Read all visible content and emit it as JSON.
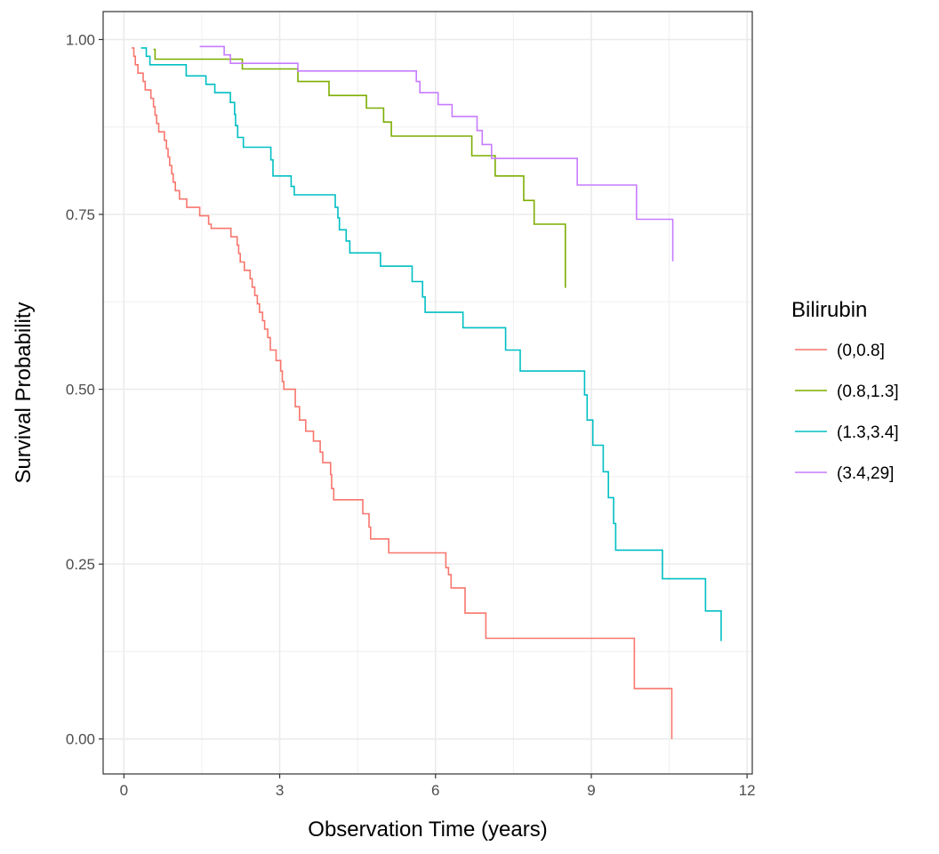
{
  "chart_data": {
    "type": "line",
    "subtype": "step",
    "xlabel": "Observation Time (years)",
    "ylabel": "Survival Probability",
    "xlim": [
      -0.4,
      12.1
    ],
    "ylim": [
      -0.05,
      1.04
    ],
    "x_ticks": [
      0,
      3,
      6,
      9,
      12
    ],
    "x_tick_labels": [
      "0",
      "3",
      "6",
      "9",
      "12"
    ],
    "y_ticks": [
      0,
      0.25,
      0.5,
      0.75,
      1.0
    ],
    "y_tick_labels": [
      "0.00",
      "0.25",
      "0.50",
      "0.75",
      "1.00"
    ],
    "grid": true,
    "legend": {
      "title": "Bilirubin",
      "position": "right"
    },
    "series": [
      {
        "name": "(0,0.8]",
        "color": "#F8766D",
        "points": [
          [
            0.15,
            0.988
          ],
          [
            0.19,
            0.976
          ],
          [
            0.22,
            0.964
          ],
          [
            0.27,
            0.952
          ],
          [
            0.37,
            0.94
          ],
          [
            0.41,
            0.928
          ],
          [
            0.52,
            0.916
          ],
          [
            0.57,
            0.904
          ],
          [
            0.6,
            0.892
          ],
          [
            0.63,
            0.88
          ],
          [
            0.67,
            0.868
          ],
          [
            0.78,
            0.856
          ],
          [
            0.82,
            0.844
          ],
          [
            0.85,
            0.832
          ],
          [
            0.88,
            0.82
          ],
          [
            0.92,
            0.808
          ],
          [
            0.95,
            0.796
          ],
          [
            0.99,
            0.784
          ],
          [
            1.07,
            0.772
          ],
          [
            1.21,
            0.76
          ],
          [
            1.46,
            0.748
          ],
          [
            1.63,
            0.736
          ],
          [
            1.68,
            0.73
          ],
          [
            2.06,
            0.718
          ],
          [
            2.18,
            0.706
          ],
          [
            2.21,
            0.694
          ],
          [
            2.24,
            0.682
          ],
          [
            2.32,
            0.67
          ],
          [
            2.43,
            0.658
          ],
          [
            2.47,
            0.646
          ],
          [
            2.52,
            0.634
          ],
          [
            2.57,
            0.622
          ],
          [
            2.61,
            0.61
          ],
          [
            2.67,
            0.598
          ],
          [
            2.71,
            0.586
          ],
          [
            2.77,
            0.574
          ],
          [
            2.82,
            0.556
          ],
          [
            2.93,
            0.541
          ],
          [
            3.02,
            0.526
          ],
          [
            3.05,
            0.511
          ],
          [
            3.08,
            0.5
          ],
          [
            3.3,
            0.475
          ],
          [
            3.38,
            0.456
          ],
          [
            3.5,
            0.44
          ],
          [
            3.65,
            0.426
          ],
          [
            3.78,
            0.41
          ],
          [
            3.83,
            0.395
          ],
          [
            3.98,
            0.378
          ],
          [
            4.0,
            0.358
          ],
          [
            4.04,
            0.342
          ],
          [
            4.6,
            0.322
          ],
          [
            4.72,
            0.303
          ],
          [
            4.75,
            0.286
          ],
          [
            5.1,
            0.266
          ],
          [
            6.2,
            0.245
          ],
          [
            6.25,
            0.235
          ],
          [
            6.3,
            0.216
          ],
          [
            6.57,
            0.18
          ],
          [
            6.97,
            0.144
          ],
          [
            9.83,
            0.072
          ],
          [
            10.55,
            0.0
          ]
        ],
        "end_x": 10.55
      },
      {
        "name": "(0.8,1.3]",
        "color": "#7CAE00",
        "points": [
          [
            0.57,
            0.986
          ],
          [
            0.6,
            0.972
          ],
          [
            2.28,
            0.958
          ],
          [
            3.35,
            0.94
          ],
          [
            3.95,
            0.92
          ],
          [
            4.67,
            0.902
          ],
          [
            5.0,
            0.882
          ],
          [
            5.15,
            0.862
          ],
          [
            6.7,
            0.834
          ],
          [
            7.15,
            0.805
          ],
          [
            7.7,
            0.77
          ],
          [
            7.9,
            0.736
          ],
          [
            8.5,
            0.645
          ]
        ],
        "end_x": 8.5
      },
      {
        "name": "(1.3,3.4]",
        "color": "#00BFC4",
        "points": [
          [
            0.33,
            0.988
          ],
          [
            0.43,
            0.976
          ],
          [
            0.5,
            0.964
          ],
          [
            1.2,
            0.948
          ],
          [
            1.58,
            0.936
          ],
          [
            1.75,
            0.924
          ],
          [
            2.05,
            0.91
          ],
          [
            2.13,
            0.893
          ],
          [
            2.15,
            0.877
          ],
          [
            2.19,
            0.86
          ],
          [
            2.3,
            0.846
          ],
          [
            2.83,
            0.828
          ],
          [
            2.87,
            0.805
          ],
          [
            3.22,
            0.79
          ],
          [
            3.28,
            0.778
          ],
          [
            4.07,
            0.76
          ],
          [
            4.12,
            0.745
          ],
          [
            4.15,
            0.728
          ],
          [
            4.28,
            0.712
          ],
          [
            4.35,
            0.695
          ],
          [
            4.94,
            0.676
          ],
          [
            5.55,
            0.654
          ],
          [
            5.75,
            0.632
          ],
          [
            5.8,
            0.61
          ],
          [
            6.53,
            0.588
          ],
          [
            7.35,
            0.556
          ],
          [
            7.63,
            0.526
          ],
          [
            8.87,
            0.492
          ],
          [
            8.92,
            0.456
          ],
          [
            9.03,
            0.42
          ],
          [
            9.23,
            0.382
          ],
          [
            9.33,
            0.345
          ],
          [
            9.43,
            0.308
          ],
          [
            9.47,
            0.27
          ],
          [
            10.37,
            0.229
          ],
          [
            11.2,
            0.183
          ],
          [
            11.5,
            0.14
          ]
        ],
        "end_x": 11.5
      },
      {
        "name": "(3.4,29]",
        "color": "#C77CFF",
        "points": [
          [
            1.46,
            0.99
          ],
          [
            1.93,
            0.978
          ],
          [
            2.05,
            0.966
          ],
          [
            3.35,
            0.955
          ],
          [
            5.63,
            0.94
          ],
          [
            5.7,
            0.924
          ],
          [
            6.05,
            0.907
          ],
          [
            6.32,
            0.89
          ],
          [
            6.8,
            0.87
          ],
          [
            6.9,
            0.85
          ],
          [
            7.08,
            0.83
          ],
          [
            8.73,
            0.792
          ],
          [
            9.87,
            0.743
          ],
          [
            10.57,
            0.683
          ]
        ],
        "end_x": 10.57
      }
    ]
  }
}
